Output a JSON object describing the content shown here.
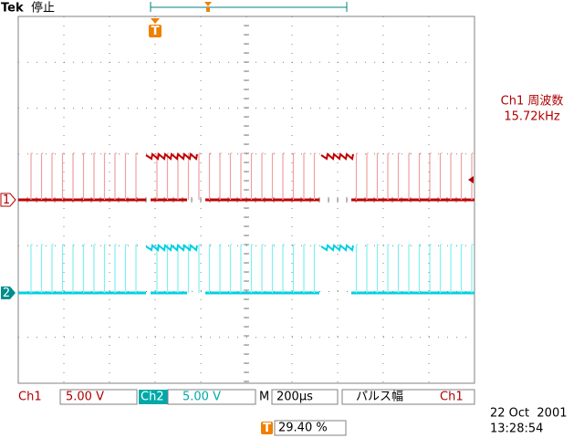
{
  "header": {
    "brand": "Tek",
    "status": "停止"
  },
  "markers": {
    "trigger": "T",
    "ch1": "1",
    "ch2": "2"
  },
  "measurement": {
    "label": "Ch1 周波数",
    "value": "15.72kHz"
  },
  "status_bar": {
    "ch1_label": "Ch1",
    "ch1_scale": "5.00 V",
    "ch2_label": "Ch2",
    "ch2_scale": "5.00 V",
    "time_label": "M",
    "time_scale": "200µs",
    "trigger_type": "パルス幅",
    "trigger_source": "Ch1",
    "trigger_marker": "T",
    "trigger_level": "29.40 %",
    "date": "22 Oct  2001",
    "time": "13:28:54"
  }
}
